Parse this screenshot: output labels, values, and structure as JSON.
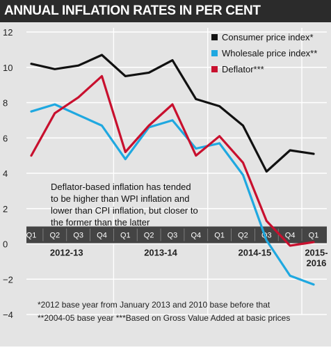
{
  "chart_data": {
    "type": "line",
    "title": "ANNUAL INFLATION RATES IN PER CENT",
    "x": [
      "Q1",
      "Q2",
      "Q3",
      "Q4",
      "Q1",
      "Q2",
      "Q3",
      "Q4",
      "Q1",
      "Q2",
      "Q3",
      "Q4",
      "Q1"
    ],
    "fiscal_years": [
      "2012-13",
      "2013-14",
      "2014-15",
      "2015-2016"
    ],
    "year_label_lines": [
      [
        "2012-13"
      ],
      [
        "2013-14"
      ],
      [
        "2014-15"
      ],
      [
        "2015-",
        "2016"
      ]
    ],
    "ylim": [
      -4,
      12
    ],
    "yticks": [
      12,
      10,
      8,
      6,
      4,
      2,
      0,
      -2,
      -4
    ],
    "grid": true,
    "legend_position": "top-right",
    "series": [
      {
        "name": "Consumer price index*",
        "color": "#111111",
        "values": [
          10.2,
          9.9,
          10.1,
          10.7,
          9.5,
          9.7,
          10.4,
          8.2,
          7.8,
          6.7,
          4.1,
          5.3,
          5.1
        ]
      },
      {
        "name": "Wholesale price index**",
        "color": "#1fa8e0",
        "values": [
          7.5,
          7.9,
          7.3,
          6.7,
          4.8,
          6.6,
          7.0,
          5.4,
          5.7,
          3.9,
          0.2,
          -1.8,
          -2.3
        ]
      },
      {
        "name": "Deflator***",
        "color": "#c8102e",
        "values": [
          5.0,
          7.4,
          8.3,
          9.5,
          5.2,
          6.7,
          7.9,
          5.0,
          6.1,
          4.6,
          1.3,
          -0.1,
          0.1
        ]
      }
    ],
    "annotation": [
      "Deflator-based inflation has tended",
      "to be higher than WPI inflation and",
      "lower than CPI inflation, but closer to",
      "the former than the latter"
    ],
    "footnotes": [
      "*2012 base year from January 2013 and 2010 base before that",
      "**2004-05 base year     ***Based on Gross Value Added at basic prices"
    ]
  },
  "colors": {
    "title_bg": "#2b2b2b",
    "chart_bg": "#e4e4e4",
    "quarter_band": "#444444",
    "grid": "#ffffff"
  }
}
